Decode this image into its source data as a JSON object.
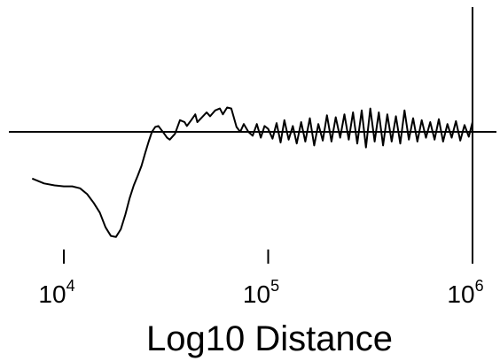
{
  "chart_data": {
    "type": "line",
    "title": "",
    "xlabel": "Log10 Distance",
    "ylabel": "",
    "x_scale": "log10",
    "xlim": [
      6500,
      1000000
    ],
    "ylim": [
      -1.2,
      0.4
    ],
    "grid": false,
    "legend": "none",
    "x_ticks": [
      {
        "value": 10000,
        "base": "10",
        "exponent": "4"
      },
      {
        "value": 100000,
        "base": "10",
        "exponent": "5"
      },
      {
        "value": 1000000,
        "base": "10",
        "exponent": "6"
      }
    ],
    "series": [
      {
        "line_color": "#000000",
        "x": [
          7000,
          8000,
          9000,
          10000,
          11000,
          12000,
          13000,
          14000,
          15000,
          16000,
          17000,
          18000,
          19000,
          20000,
          21000,
          22000,
          23000,
          24000,
          25000,
          26000,
          27000,
          28000,
          29000,
          30000,
          31000,
          32000,
          33000,
          35000,
          37000,
          39000,
          40000,
          42000,
          44000,
          45000,
          47000,
          50000,
          52000,
          55000,
          58000,
          60000,
          63000,
          66000,
          70000,
          73000,
          76000,
          80000,
          84000,
          88000,
          92000,
          96000,
          100000,
          105000,
          110000,
          115000,
          120000,
          126000,
          132000,
          138000,
          145000,
          152000,
          160000,
          168000,
          176000,
          185000,
          194000,
          204000,
          214000,
          225000,
          236000,
          248000,
          260000,
          273000,
          287000,
          301000,
          316000,
          332000,
          348000,
          365000,
          383000,
          402000,
          422000,
          443000,
          465000,
          488000,
          512000,
          537000,
          564000,
          592000,
          621000,
          652000,
          684000,
          718000,
          754000,
          791000,
          830000,
          871000,
          914000,
          959000,
          1000000
        ],
        "y": [
          -0.48,
          -0.53,
          -0.55,
          -0.56,
          -0.56,
          -0.58,
          -0.64,
          -0.73,
          -0.83,
          -0.98,
          -1.07,
          -1.08,
          -1.0,
          -0.85,
          -0.68,
          -0.55,
          -0.45,
          -0.35,
          -0.22,
          -0.1,
          0.0,
          0.05,
          0.06,
          0.02,
          -0.02,
          -0.06,
          -0.08,
          -0.02,
          0.12,
          0.1,
          0.06,
          0.12,
          0.18,
          0.1,
          0.14,
          0.2,
          0.16,
          0.22,
          0.24,
          0.18,
          0.25,
          0.24,
          0.05,
          0.0,
          0.08,
          0.0,
          -0.04,
          0.08,
          -0.06,
          0.06,
          0.03,
          -0.07,
          0.09,
          -0.11,
          0.12,
          -0.08,
          0.06,
          -0.12,
          0.1,
          -0.1,
          0.14,
          -0.14,
          0.08,
          -0.09,
          0.17,
          -0.1,
          0.15,
          -0.06,
          0.18,
          -0.08,
          0.2,
          -0.12,
          0.22,
          -0.16,
          0.24,
          -0.1,
          0.2,
          -0.14,
          0.18,
          -0.1,
          0.16,
          -0.12,
          0.22,
          -0.08,
          0.14,
          -0.1,
          0.12,
          -0.06,
          0.1,
          -0.08,
          0.13,
          -0.1,
          0.08,
          -0.06,
          0.11,
          -0.09,
          0.07,
          -0.05,
          0.1
        ]
      }
    ]
  }
}
